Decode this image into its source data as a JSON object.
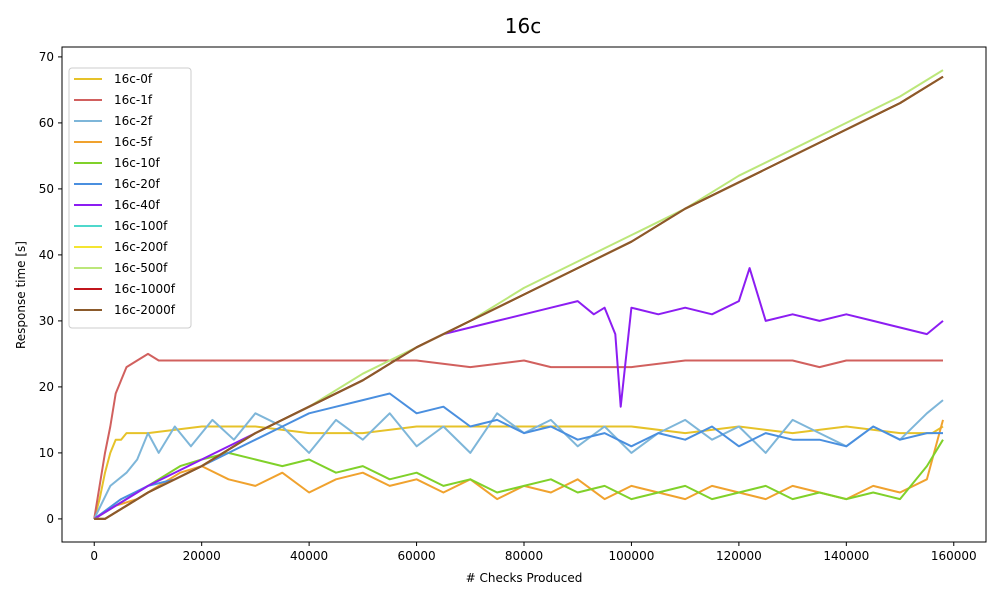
{
  "chart_data": {
    "type": "line",
    "title": "16c",
    "xlabel": "# Checks Produced",
    "ylabel": "Response time [s]",
    "xlim": [
      -6000,
      166000
    ],
    "ylim": [
      -3.5,
      71.5
    ],
    "xticks": [
      0,
      20000,
      40000,
      60000,
      80000,
      100000,
      120000,
      140000,
      160000
    ],
    "yticks": [
      0,
      10,
      20,
      30,
      40,
      50,
      60,
      70
    ],
    "grid": false,
    "legend_position": "top-left",
    "series": [
      {
        "name": "16c-0f",
        "color": "#e6c229",
        "x": [
          0,
          1000,
          2000,
          3000,
          4000,
          5000,
          6000,
          10000,
          20000,
          30000,
          40000,
          50000,
          60000,
          70000,
          80000,
          90000,
          100000,
          110000,
          120000,
          130000,
          140000,
          150000,
          156000,
          158000
        ],
        "y": [
          0,
          3,
          7,
          10,
          12,
          12,
          13,
          13,
          14,
          14,
          13,
          13,
          14,
          14,
          14,
          14,
          14,
          13,
          14,
          13,
          14,
          13,
          13,
          14
        ]
      },
      {
        "name": "16c-1f",
        "color": "#d1605e",
        "x": [
          0,
          1000,
          2000,
          3000,
          4000,
          5000,
          6000,
          8000,
          10000,
          12000,
          20000,
          40000,
          50000,
          60000,
          70000,
          80000,
          85000,
          100000,
          110000,
          130000,
          135000,
          140000,
          158000
        ],
        "y": [
          0,
          5,
          10,
          14,
          19,
          21,
          23,
          24,
          25,
          24,
          24,
          24,
          24,
          24,
          23,
          24,
          23,
          23,
          24,
          24,
          23,
          24,
          24
        ]
      },
      {
        "name": "16c-2f",
        "color": "#7eb6d9",
        "x": [
          0,
          3000,
          6000,
          8000,
          10000,
          12000,
          15000,
          18000,
          22000,
          26000,
          30000,
          35000,
          40000,
          45000,
          50000,
          55000,
          60000,
          65000,
          70000,
          75000,
          80000,
          85000,
          90000,
          95000,
          100000,
          105000,
          110000,
          115000,
          120000,
          125000,
          130000,
          135000,
          140000,
          145000,
          150000,
          155000,
          158000
        ],
        "y": [
          0,
          5,
          7,
          9,
          13,
          10,
          14,
          11,
          15,
          12,
          16,
          14,
          10,
          15,
          12,
          16,
          11,
          14,
          10,
          16,
          13,
          15,
          11,
          14,
          10,
          13,
          15,
          12,
          14,
          10,
          15,
          13,
          11,
          14,
          12,
          16,
          18
        ]
      },
      {
        "name": "16c-5f",
        "color": "#f0a22e",
        "x": [
          0,
          4000,
          8000,
          12000,
          16000,
          20000,
          25000,
          30000,
          35000,
          40000,
          45000,
          50000,
          55000,
          60000,
          65000,
          70000,
          75000,
          80000,
          85000,
          90000,
          95000,
          100000,
          105000,
          110000,
          115000,
          120000,
          125000,
          130000,
          135000,
          140000,
          145000,
          150000,
          155000,
          158000
        ],
        "y": [
          0,
          2,
          3,
          5,
          7,
          8,
          6,
          5,
          7,
          4,
          6,
          7,
          5,
          6,
          4,
          6,
          3,
          5,
          4,
          6,
          3,
          5,
          4,
          3,
          5,
          4,
          3,
          5,
          4,
          3,
          5,
          4,
          6,
          15
        ]
      },
      {
        "name": "16c-10f",
        "color": "#80d12a",
        "x": [
          0,
          4000,
          8000,
          12000,
          16000,
          20000,
          25000,
          30000,
          35000,
          40000,
          45000,
          50000,
          55000,
          60000,
          65000,
          70000,
          75000,
          80000,
          85000,
          90000,
          95000,
          100000,
          105000,
          110000,
          115000,
          120000,
          125000,
          130000,
          135000,
          140000,
          145000,
          150000,
          155000,
          158000
        ],
        "y": [
          0,
          2,
          4,
          6,
          8,
          9,
          10,
          9,
          8,
          9,
          7,
          8,
          6,
          7,
          5,
          6,
          4,
          5,
          6,
          4,
          5,
          3,
          4,
          5,
          3,
          4,
          5,
          3,
          4,
          3,
          4,
          3,
          8,
          12
        ]
      },
      {
        "name": "16c-20f",
        "color": "#4a8fdf",
        "x": [
          0,
          5000,
          10000,
          15000,
          20000,
          25000,
          30000,
          35000,
          40000,
          45000,
          50000,
          55000,
          60000,
          65000,
          70000,
          75000,
          80000,
          85000,
          90000,
          95000,
          100000,
          105000,
          110000,
          115000,
          120000,
          125000,
          130000,
          135000,
          140000,
          145000,
          150000,
          155000,
          158000
        ],
        "y": [
          0,
          3,
          5,
          6,
          8,
          10,
          12,
          14,
          16,
          17,
          18,
          19,
          16,
          17,
          14,
          15,
          13,
          14,
          12,
          13,
          11,
          13,
          12,
          14,
          11,
          13,
          12,
          12,
          11,
          14,
          12,
          13,
          13
        ]
      },
      {
        "name": "16c-40f",
        "color": "#8c1df2",
        "x": [
          0,
          10000,
          20000,
          30000,
          40000,
          50000,
          60000,
          65000,
          70000,
          75000,
          80000,
          85000,
          90000,
          93000,
          95000,
          97000,
          98000,
          100000,
          105000,
          110000,
          115000,
          120000,
          122000,
          125000,
          130000,
          135000,
          140000,
          145000,
          150000,
          155000,
          158000
        ],
        "y": [
          0,
          5,
          9,
          13,
          17,
          21,
          26,
          28,
          29,
          30,
          31,
          32,
          33,
          31,
          32,
          28,
          17,
          32,
          31,
          32,
          31,
          33,
          38,
          30,
          31,
          30,
          31,
          30,
          29,
          28,
          30
        ]
      },
      {
        "name": "16c-100f",
        "color": "#4fd8cc",
        "x": [
          0,
          2000,
          10000,
          20000,
          30000,
          40000,
          50000,
          60000,
          70000,
          80000,
          90000,
          100000,
          110000,
          120000,
          130000,
          140000,
          150000,
          158000
        ],
        "y": [
          0,
          0,
          4,
          8,
          13,
          17,
          21,
          26,
          30,
          34,
          38,
          42,
          47,
          51,
          55,
          59,
          63,
          67
        ]
      },
      {
        "name": "16c-200f",
        "color": "#f4e531",
        "x": [
          0,
          2000,
          10000,
          20000,
          30000,
          40000,
          50000,
          60000,
          70000,
          80000,
          90000,
          100000,
          110000,
          120000,
          130000,
          140000,
          150000,
          158000
        ],
        "y": [
          0,
          0,
          4,
          8,
          13,
          17,
          21,
          26,
          30,
          34,
          38,
          42,
          47,
          51,
          55,
          59,
          63,
          67
        ]
      },
      {
        "name": "16c-500f",
        "color": "#bce77a",
        "x": [
          0,
          2000,
          10000,
          20000,
          30000,
          40000,
          50000,
          60000,
          70000,
          80000,
          90000,
          100000,
          110000,
          120000,
          130000,
          140000,
          150000,
          158000
        ],
        "y": [
          0,
          0,
          4,
          8,
          13,
          17,
          22,
          26,
          30,
          35,
          39,
          43,
          47,
          52,
          56,
          60,
          64,
          68
        ]
      },
      {
        "name": "16c-1000f",
        "color": "#c1151c",
        "x": [
          0,
          2000,
          10000,
          20000,
          30000,
          40000,
          50000,
          60000,
          70000,
          80000,
          90000,
          100000,
          110000,
          120000,
          130000,
          140000,
          150000,
          158000
        ],
        "y": [
          0,
          0,
          4,
          8,
          13,
          17,
          21,
          26,
          30,
          34,
          38,
          42,
          47,
          51,
          55,
          59,
          63,
          67
        ]
      },
      {
        "name": "16c-2000f",
        "color": "#8b5a2b",
        "x": [
          0,
          2000,
          10000,
          20000,
          30000,
          40000,
          50000,
          60000,
          70000,
          80000,
          90000,
          100000,
          110000,
          120000,
          130000,
          140000,
          150000,
          158000
        ],
        "y": [
          0,
          0,
          4,
          8,
          13,
          17,
          21,
          26,
          30,
          34,
          38,
          42,
          47,
          51,
          55,
          59,
          63,
          67
        ]
      }
    ]
  }
}
